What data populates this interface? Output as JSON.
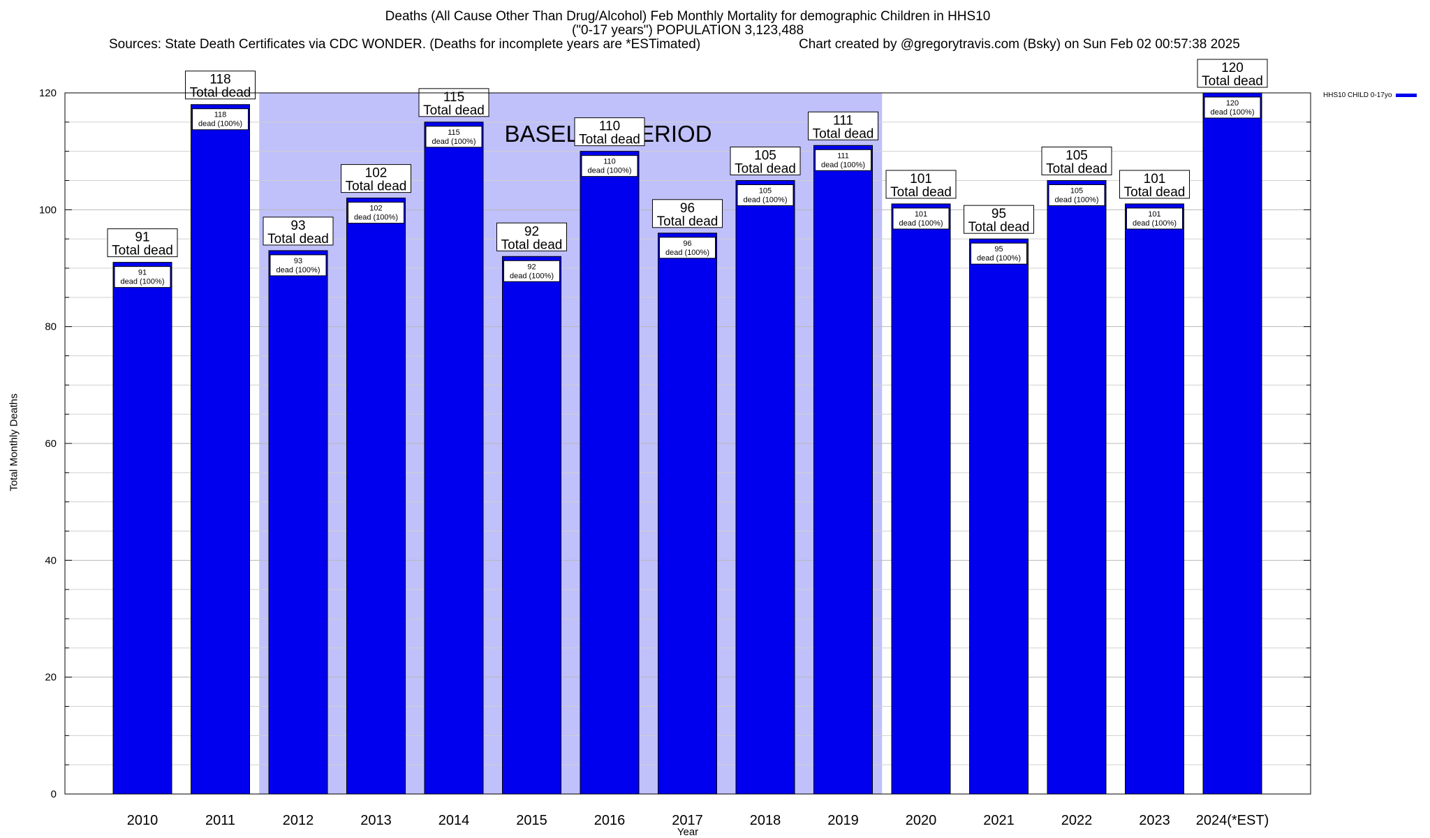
{
  "header": {
    "title_line1": "Deaths (All Cause Other Than Drug/Alcohol) Feb Monthly Mortality for demographic Children in HHS10",
    "title_line2": "(\"0-17 years\") POPULATION 3,123,488",
    "sources": "Sources: State Death Certificates via CDC WONDER. (Deaths for incomplete years are *ESTimated)",
    "credit": "Chart created by @gregorytravis.com (Bsky) on Sun Feb 02 00:57:38 2025"
  },
  "legend": {
    "label": "HHS10 CHILD 0-17yo"
  },
  "chart_data": {
    "type": "bar",
    "xlabel": "Year",
    "ylabel": "Total Monthly Deaths",
    "ylim": [
      0,
      120
    ],
    "yticks": [
      0,
      20,
      40,
      60,
      80,
      100,
      120
    ],
    "grid": true,
    "legend_position": "top-right",
    "bar_color": "#0000ee",
    "baseline_color": "#c0c0fa",
    "baseline_label": "BASELINE PERIOD",
    "baseline_range": [
      "2012",
      "2019"
    ],
    "categories": [
      "2010",
      "2011",
      "2012",
      "2013",
      "2014",
      "2015",
      "2016",
      "2017",
      "2018",
      "2019",
      "2020",
      "2021",
      "2022",
      "2023",
      "2024(*EST)"
    ],
    "series": [
      {
        "name": "HHS10 CHILD 0-17yo",
        "values": [
          91,
          118,
          93,
          102,
          115,
          92,
          110,
          96,
          105,
          111,
          101,
          95,
          105,
          101,
          120
        ]
      }
    ],
    "total_label_suffix": "Total dead",
    "inner_label_suffix": "dead (100%)"
  }
}
